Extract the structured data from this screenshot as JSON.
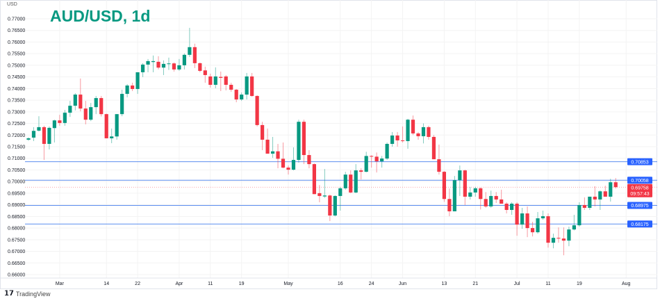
{
  "title": "AUD/USD, 1d",
  "currency": "USD",
  "brand": "TradingView",
  "colors": {
    "up": "#089981",
    "down": "#F23645",
    "level_line": "#5B8DEF",
    "badge": "#2962FF",
    "grid": "#F3F3F3"
  },
  "chart_data": {
    "type": "candlestick",
    "title": "AUD/USD, 1d",
    "ylabel": "USD",
    "ylim": [
      0.66,
      0.77
    ],
    "grid": true,
    "y_ticks": [
      "0.66000",
      "0.66500",
      "0.67000",
      "0.67500",
      "0.68000",
      "0.68500",
      "0.69000",
      "0.69500",
      "0.70000",
      "0.70500",
      "0.71000",
      "0.71500",
      "0.72000",
      "0.72500",
      "0.73000",
      "0.73500",
      "0.74000",
      "0.74500",
      "0.75000",
      "0.75500",
      "0.76000",
      "0.76500",
      "0.77000"
    ],
    "x_ticks": [
      {
        "label": "Mar",
        "date": "Mar 1"
      },
      {
        "label": "14",
        "date": "Mar 14"
      },
      {
        "label": "22",
        "date": "Mar 22"
      },
      {
        "label": "Apr",
        "date": "Apr 1"
      },
      {
        "label": "11",
        "date": "Apr 11"
      },
      {
        "label": "19",
        "date": "Apr 19"
      },
      {
        "label": "May",
        "date": "May 2"
      },
      {
        "label": "16",
        "date": "May 16"
      },
      {
        "label": "24",
        "date": "May 24"
      },
      {
        "label": "Jun",
        "date": "Jun 1"
      },
      {
        "label": "13",
        "date": "Jun 13"
      },
      {
        "label": "21",
        "date": "Jun 21"
      },
      {
        "label": "Jul",
        "date": "Jul 1"
      },
      {
        "label": "11",
        "date": "Jul 11"
      },
      {
        "label": "19",
        "date": "Jul 19"
      },
      {
        "label": "Aug",
        "date": "Aug 1"
      }
    ],
    "levels": [
      {
        "price": "0.70853"
      },
      {
        "price": "0.70058"
      },
      {
        "price": "0.68975"
      },
      {
        "price": "0.68175"
      }
    ],
    "last_price": {
      "price": "0.69758",
      "countdown": "09:57:43"
    },
    "candles_fields": [
      "date",
      "open",
      "high",
      "low",
      "close"
    ],
    "candles": [
      [
        "Feb 21",
        0.718,
        0.719,
        0.7175,
        0.7186
      ],
      [
        "Feb 22",
        0.7189,
        0.7234,
        0.7174,
        0.7218
      ],
      [
        "Feb 23",
        0.7219,
        0.7281,
        0.7215,
        0.7234
      ],
      [
        "Feb 24",
        0.7234,
        0.724,
        0.7093,
        0.7162
      ],
      [
        "Feb 25",
        0.7162,
        0.7237,
        0.7138,
        0.7231
      ],
      [
        "Feb 28",
        0.723,
        0.7266,
        0.7168,
        0.7263
      ],
      [
        "Mar 1",
        0.7263,
        0.7287,
        0.724,
        0.7252
      ],
      [
        "Mar 2",
        0.7252,
        0.7308,
        0.724,
        0.7296
      ],
      [
        "Mar 3",
        0.7296,
        0.7347,
        0.7278,
        0.7326
      ],
      [
        "Mar 4",
        0.7326,
        0.738,
        0.7306,
        0.7374
      ],
      [
        "Mar 7",
        0.7374,
        0.7443,
        0.7302,
        0.7314
      ],
      [
        "Mar 8",
        0.7314,
        0.7347,
        0.7246,
        0.7266
      ],
      [
        "Mar 9",
        0.7266,
        0.7338,
        0.726,
        0.732
      ],
      [
        "Mar 10",
        0.732,
        0.7368,
        0.729,
        0.7359
      ],
      [
        "Mar 11",
        0.7359,
        0.7368,
        0.728,
        0.729
      ],
      [
        "Mar 14",
        0.729,
        0.7292,
        0.7186,
        0.7186
      ],
      [
        "Mar 15",
        0.7186,
        0.7228,
        0.7165,
        0.7194
      ],
      [
        "Mar 16",
        0.7194,
        0.729,
        0.718,
        0.729
      ],
      [
        "Mar 17",
        0.729,
        0.7395,
        0.7281,
        0.7377
      ],
      [
        "Mar 18",
        0.7377,
        0.7419,
        0.7362,
        0.7413
      ],
      [
        "Mar 21",
        0.7413,
        0.7425,
        0.7389,
        0.7398
      ],
      [
        "Mar 22",
        0.7398,
        0.747,
        0.7377,
        0.747
      ],
      [
        "Mar 23",
        0.747,
        0.7509,
        0.7449,
        0.7503
      ],
      [
        "Mar 24",
        0.7503,
        0.7527,
        0.747,
        0.7518
      ],
      [
        "Mar 25",
        0.7514,
        0.7542,
        0.747,
        0.7518
      ],
      [
        "Mar 28",
        0.7515,
        0.7539,
        0.7482,
        0.749
      ],
      [
        "Mar 29",
        0.749,
        0.7521,
        0.7458,
        0.7506
      ],
      [
        "Mar 30",
        0.7505,
        0.7533,
        0.748,
        0.7508
      ],
      [
        "Mar 31",
        0.7508,
        0.7512,
        0.7473,
        0.7482
      ],
      [
        "Apr 1",
        0.7482,
        0.7527,
        0.7476,
        0.75
      ],
      [
        "Apr 4",
        0.75,
        0.7551,
        0.7482,
        0.7545
      ],
      [
        "Apr 5",
        0.7545,
        0.7661,
        0.7536,
        0.7578
      ],
      [
        "Apr 6",
        0.7578,
        0.7593,
        0.7488,
        0.7509
      ],
      [
        "Apr 7",
        0.7509,
        0.7512,
        0.747,
        0.7476
      ],
      [
        "Apr 8",
        0.7478,
        0.7494,
        0.7425,
        0.7458
      ],
      [
        "Apr 11",
        0.7452,
        0.7464,
        0.7404,
        0.7416
      ],
      [
        "Apr 12",
        0.7416,
        0.7491,
        0.7401,
        0.7452
      ],
      [
        "Apr 13",
        0.745,
        0.7473,
        0.7389,
        0.7446
      ],
      [
        "Apr 14",
        0.7452,
        0.7458,
        0.7392,
        0.7416
      ],
      [
        "Apr 15",
        0.7416,
        0.7425,
        0.7386,
        0.7395
      ],
      [
        "Apr 18",
        0.7395,
        0.7398,
        0.7341,
        0.7353
      ],
      [
        "Apr 19",
        0.7353,
        0.7383,
        0.7347,
        0.7374
      ],
      [
        "Apr 20",
        0.7374,
        0.7467,
        0.7353,
        0.7452
      ],
      [
        "Apr 21",
        0.7452,
        0.7467,
        0.7365,
        0.7368
      ],
      [
        "Apr 22",
        0.7368,
        0.7371,
        0.7237,
        0.7243
      ],
      [
        "Apr 25",
        0.7243,
        0.7257,
        0.7135,
        0.718
      ],
      [
        "Apr 26",
        0.718,
        0.7228,
        0.712,
        0.712
      ],
      [
        "Apr 27",
        0.712,
        0.7192,
        0.7102,
        0.713
      ],
      [
        "Apr 28",
        0.713,
        0.7162,
        0.7057,
        0.7098
      ],
      [
        "Apr 29",
        0.7098,
        0.7168,
        0.7057,
        0.706
      ],
      [
        "May 2",
        0.706,
        0.7069,
        0.703,
        0.7051
      ],
      [
        "May 3",
        0.7051,
        0.7147,
        0.7048,
        0.7093
      ],
      [
        "May 4",
        0.7093,
        0.7266,
        0.7081,
        0.7257
      ],
      [
        "May 5",
        0.7257,
        0.7266,
        0.7075,
        0.7114
      ],
      [
        "May 6",
        0.7114,
        0.7135,
        0.7057,
        0.7075
      ],
      [
        "May 9",
        0.7075,
        0.7078,
        0.6946,
        0.6946
      ],
      [
        "May 10",
        0.695,
        0.6985,
        0.6911,
        0.6938
      ],
      [
        "May 11",
        0.6936,
        0.7054,
        0.693,
        0.694
      ],
      [
        "May 12",
        0.694,
        0.6944,
        0.683,
        0.6854
      ],
      [
        "May 13",
        0.6854,
        0.6941,
        0.685,
        0.6938
      ],
      [
        "May 16",
        0.6938,
        0.6977,
        0.6875,
        0.6971
      ],
      [
        "May 17",
        0.6971,
        0.7042,
        0.6965,
        0.703
      ],
      [
        "May 18",
        0.703,
        0.7048,
        0.695,
        0.6953
      ],
      [
        "May 19",
        0.6953,
        0.7075,
        0.695,
        0.7048
      ],
      [
        "May 20",
        0.7048,
        0.7057,
        0.7009,
        0.7042
      ],
      [
        "May 23",
        0.7042,
        0.7128,
        0.704,
        0.711
      ],
      [
        "May 24",
        0.711,
        0.7113,
        0.706,
        0.7107
      ],
      [
        "May 25",
        0.7107,
        0.7125,
        0.7039,
        0.7087
      ],
      [
        "May 26",
        0.7087,
        0.711,
        0.706,
        0.7099
      ],
      [
        "May 27",
        0.7099,
        0.7168,
        0.7093,
        0.7162
      ],
      [
        "May 30",
        0.7162,
        0.7213,
        0.715,
        0.7198
      ],
      [
        "May 31",
        0.7198,
        0.7213,
        0.715,
        0.7177
      ],
      [
        "Jun 1",
        0.7177,
        0.7237,
        0.7168,
        0.7174
      ],
      [
        "Jun 2",
        0.7174,
        0.727,
        0.7141,
        0.7266
      ],
      [
        "Jun 3",
        0.7266,
        0.7284,
        0.72,
        0.7207
      ],
      [
        "Jun 6",
        0.7207,
        0.7213,
        0.718,
        0.7195
      ],
      [
        "Jun 7",
        0.7195,
        0.725,
        0.7164,
        0.7234
      ],
      [
        "Jun 8",
        0.7234,
        0.724,
        0.718,
        0.7192
      ],
      [
        "Jun 9",
        0.7192,
        0.72,
        0.7096,
        0.7096
      ],
      [
        "Jun 10",
        0.7096,
        0.7159,
        0.703,
        0.7042
      ],
      [
        "Jun 13",
        0.7042,
        0.7045,
        0.6913,
        0.6925
      ],
      [
        "Jun 14",
        0.6925,
        0.697,
        0.6851,
        0.6872
      ],
      [
        "Jun 15",
        0.6872,
        0.7024,
        0.6872,
        0.7006
      ],
      [
        "Jun 16",
        0.7006,
        0.7069,
        0.6938,
        0.7048
      ],
      [
        "Jun 17",
        0.7048,
        0.7051,
        0.6899,
        0.6935
      ],
      [
        "Jun 20",
        0.6935,
        0.6977,
        0.6923,
        0.6953
      ],
      [
        "Jun 21",
        0.6953,
        0.6977,
        0.6935,
        0.6971
      ],
      [
        "Jun 22",
        0.6971,
        0.6975,
        0.688,
        0.6925
      ],
      [
        "Jun 23",
        0.6925,
        0.6955,
        0.6887,
        0.6893
      ],
      [
        "Jun 24",
        0.6893,
        0.6961,
        0.6887,
        0.6938
      ],
      [
        "Jun 27",
        0.6938,
        0.6955,
        0.6908,
        0.6923
      ],
      [
        "Jun 28",
        0.6923,
        0.6965,
        0.6905,
        0.6905
      ],
      [
        "Jun 29",
        0.6905,
        0.6911,
        0.6863,
        0.6878
      ],
      [
        "Jun 30",
        0.6878,
        0.6911,
        0.6857,
        0.6905
      ],
      [
        "Jul 1",
        0.6905,
        0.6911,
        0.6767,
        0.6815
      ],
      [
        "Jul 4",
        0.6815,
        0.6887,
        0.6797,
        0.6863
      ],
      [
        "Jul 5",
        0.6863,
        0.6893,
        0.6761,
        0.68
      ],
      [
        "Jul 6",
        0.68,
        0.6827,
        0.6764,
        0.6782
      ],
      [
        "Jul 7",
        0.6782,
        0.6869,
        0.6776,
        0.6842
      ],
      [
        "Jul 8",
        0.6842,
        0.6875,
        0.6836,
        0.6851
      ],
      [
        "Jul 11",
        0.6851,
        0.6863,
        0.6716,
        0.6737
      ],
      [
        "Jul 12",
        0.6737,
        0.6776,
        0.6713,
        0.6758
      ],
      [
        "Jul 13",
        0.6758,
        0.6803,
        0.6737,
        0.6755
      ],
      [
        "Jul 14",
        0.6755,
        0.6803,
        0.6683,
        0.6746
      ],
      [
        "Jul 15",
        0.6746,
        0.6806,
        0.6722,
        0.6794
      ],
      [
        "Jul 18",
        0.6794,
        0.6857,
        0.679,
        0.6812
      ],
      [
        "Jul 19",
        0.6812,
        0.6911,
        0.6806,
        0.6899
      ],
      [
        "Jul 20",
        0.6899,
        0.6932,
        0.6878,
        0.6887
      ],
      [
        "Jul 21",
        0.6887,
        0.6935,
        0.6878,
        0.6935
      ],
      [
        "Jul 22",
        0.6935,
        0.698,
        0.6893,
        0.6923
      ],
      [
        "Jul 25",
        0.6923,
        0.6962,
        0.6878,
        0.6958
      ],
      [
        "Jul 26",
        0.6958,
        0.6982,
        0.6935,
        0.6935
      ],
      [
        "Jul 27",
        0.6935,
        0.7012,
        0.6914,
        0.6997
      ],
      [
        "Jul 28",
        0.6997,
        0.7015,
        0.697,
        0.6976
      ]
    ]
  }
}
